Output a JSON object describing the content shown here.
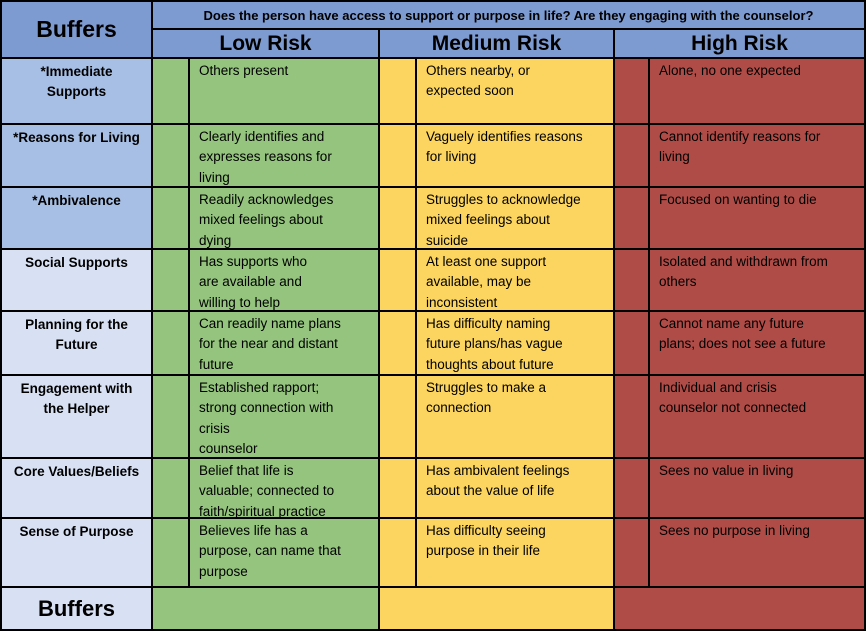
{
  "title": {
    "corner": "Buffers",
    "footer": "Buffers"
  },
  "header": {
    "question": "Does the person have access to support or purpose in life? Are they engaging with the counselor?",
    "risk_levels": [
      "Low Risk",
      "Medium Risk",
      "High Risk"
    ]
  },
  "rows": [
    {
      "label": "*Immediate\nSupports",
      "starred": true,
      "low": "Others present",
      "medium": "Others nearby, or\nexpected soon",
      "high": "Alone, no one expected"
    },
    {
      "label": "*Reasons for Living",
      "starred": true,
      "low": "Clearly identifies and\nexpresses reasons for\nliving",
      "medium": "Vaguely identifies reasons\nfor living",
      "high": "Cannot identify reasons for\nliving"
    },
    {
      "label": "*Ambivalence",
      "starred": true,
      "low": "Readily acknowledges\nmixed feelings about\ndying",
      "medium": "Struggles to acknowledge\nmixed feelings about\nsuicide",
      "high": "Focused on wanting to die"
    },
    {
      "label": "Social Supports",
      "starred": false,
      "low": "Has supports who\nare available and\nwilling to help",
      "medium": "At least one support\navailable, may be\ninconsistent",
      "high": "Isolated and withdrawn from\nothers"
    },
    {
      "label": "Planning for the\nFuture",
      "starred": false,
      "low": "Can readily name plans\nfor the near and distant\nfuture",
      "medium": "Has difficulty naming\nfuture plans/has vague\nthoughts about future",
      "high": "Cannot name any future\nplans; does not see a future"
    },
    {
      "label": "Engagement with\nthe Helper",
      "starred": false,
      "low": "Established rapport;\nstrong connection with\ncrisis\ncounselor",
      "medium": "Struggles to make a\nconnection",
      "high": "Individual and crisis\ncounselor not connected"
    },
    {
      "label": "Core Values/Beliefs",
      "starred": false,
      "low": "Belief that life is\nvaluable; connected to\nfaith/spiritual practice",
      "medium": "Has ambivalent feelings\nabout the value of life",
      "high": "Sees no value in living"
    },
    {
      "label": "Sense of Purpose",
      "starred": false,
      "low": "Believes life has a\npurpose, can name that\npurpose",
      "medium": "Has difficulty seeing\npurpose in their life",
      "high": "Sees no purpose in living"
    }
  ],
  "colors": {
    "header_blue": "#7e9bd1",
    "label_blue_starred": "#a7bfe4",
    "label_blue": "#d8e1f3",
    "low_green": "#94c47d",
    "medium_yellow": "#fbd55f",
    "high_red": "#b04c47",
    "border": "#000000"
  }
}
